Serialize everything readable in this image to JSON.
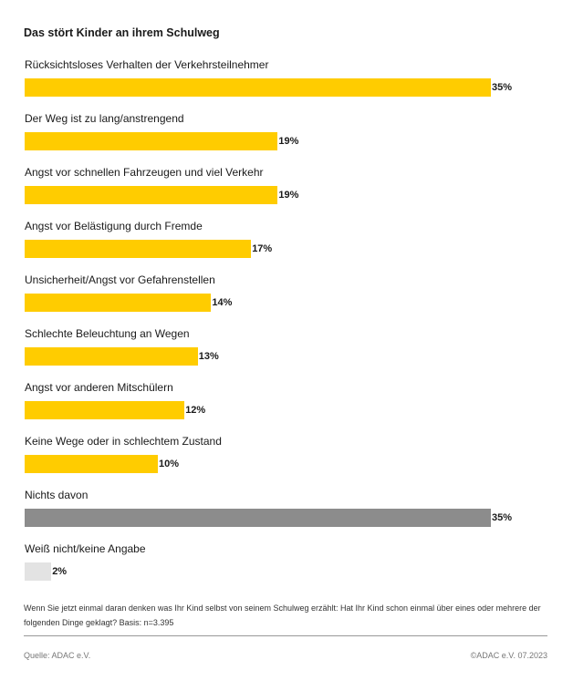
{
  "chart_data": {
    "type": "bar",
    "orientation": "horizontal",
    "title": "Das stört Kinder an ihrem Schulweg",
    "categories": [
      "Rücksichtsloses Verhalten der Verkehrsteilnehmer",
      "Der Weg ist zu lang/anstrengend",
      "Angst vor schnellen Fahrzeugen und viel Verkehr",
      "Angst vor Belästigung durch Fremde",
      "Unsicherheit/Angst vor Gefahrenstellen",
      "Schlechte Beleuchtung an Wegen",
      "Angst vor anderen Mitschülern",
      "Keine Wege oder in schlechtem Zustand",
      "Nichts davon",
      "Weiß nicht/keine Angabe"
    ],
    "values": [
      35,
      19,
      19,
      17,
      14,
      13,
      12,
      10,
      35,
      2
    ],
    "value_labels": [
      "35%",
      "19%",
      "19%",
      "17%",
      "14%",
      "13%",
      "12%",
      "10%",
      "35%",
      "2%"
    ],
    "colors": [
      "#ffcc00",
      "#ffcc00",
      "#ffcc00",
      "#ffcc00",
      "#ffcc00",
      "#ffcc00",
      "#ffcc00",
      "#ffcc00",
      "#8c8c8c",
      "#e3e3e3"
    ],
    "xlim": [
      0,
      35
    ],
    "grid": false,
    "legend": "none"
  },
  "footer": {
    "question": "Wenn Sie jetzt einmal daran denken was Ihr Kind selbst von seinem Schulweg erzählt: Hat Ihr Kind schon einmal über eines oder mehrere der folgenden Dinge geklagt? Basis: n=3.395",
    "source": "Quelle: ADAC e.V.",
    "copyright": "©ADAC e.V.  07.2023"
  }
}
